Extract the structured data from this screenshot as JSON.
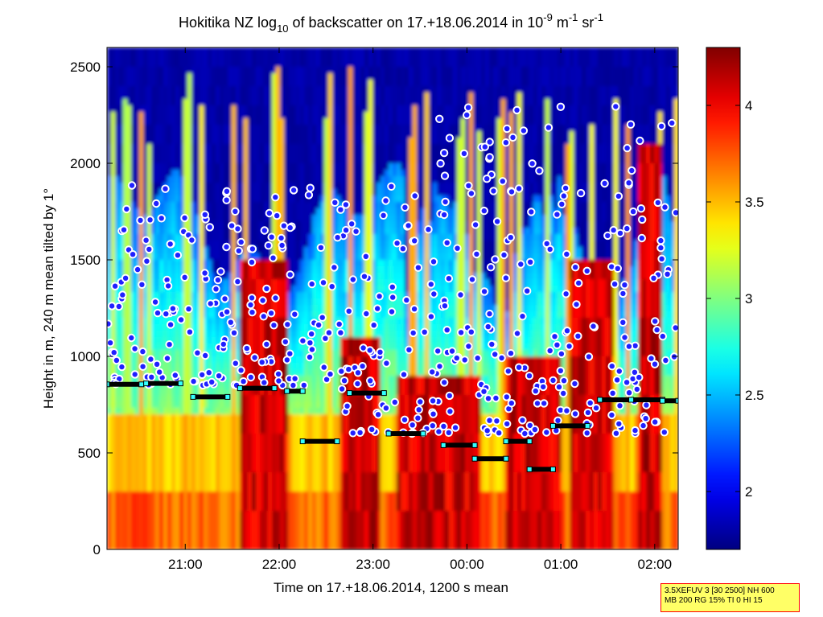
{
  "chart_data": {
    "type": "heatmap",
    "title": {
      "prefix": "Hokitika NZ log",
      "prefix_sub": "10",
      "middle": " of backscatter on 17.+18.06.2014 in 10",
      "exp1": "-9",
      "unit1": " m",
      "exp2": "-1",
      "unit2": " sr",
      "exp3": "-1"
    },
    "xlabel": "Time on 17.+18.06.2014, 1200 s mean",
    "ylabel": "Height in m, 240 m mean tilted by 1°",
    "x_range": [
      "20:10",
      "02:15"
    ],
    "x_ticks": [
      "21:00",
      "22:00",
      "23:00",
      "00:00",
      "01:00",
      "02:00"
    ],
    "ylim": [
      0,
      2600
    ],
    "y_ticks": [
      0,
      500,
      1000,
      1500,
      2000,
      2500
    ],
    "colorbar": {
      "range": [
        1.7,
        4.3
      ],
      "ticks": [
        "2",
        "2.5",
        "3",
        "3.5",
        "4"
      ],
      "colormap": "jet"
    },
    "cloud_base_series": [
      {
        "time": "20:10",
        "height": 855
      },
      {
        "time": "20:35",
        "height": 860
      },
      {
        "time": "21:05",
        "height": 790
      },
      {
        "time": "21:35",
        "height": 835
      },
      {
        "time": "22:05",
        "height": 820
      },
      {
        "time": "22:15",
        "height": 560
      },
      {
        "time": "22:45",
        "height": 810
      },
      {
        "time": "23:10",
        "height": 600
      },
      {
        "time": "23:45",
        "height": 540
      },
      {
        "time": "00:05",
        "height": 470
      },
      {
        "time": "00:25",
        "height": 560
      },
      {
        "time": "00:40",
        "height": 415
      },
      {
        "time": "00:55",
        "height": 640
      },
      {
        "time": "01:25",
        "height": 775
      },
      {
        "time": "01:45",
        "height": 775
      },
      {
        "time": "02:05",
        "height": 770
      }
    ]
  },
  "info_box": {
    "line1": "3.5XEFUV 3 [30 2500] NH 600",
    "line2": "MB 200 RG 15% TI 0 HI 15"
  },
  "colors": {
    "jet_low": "#00008f",
    "jet_high": "#800000",
    "marker_fill": "#2020ff",
    "marker_ring": "#ffffff",
    "marker_edge": "#cc0000",
    "cloud_base_line": "#000000",
    "cloud_base_marker": "#33ffff"
  }
}
